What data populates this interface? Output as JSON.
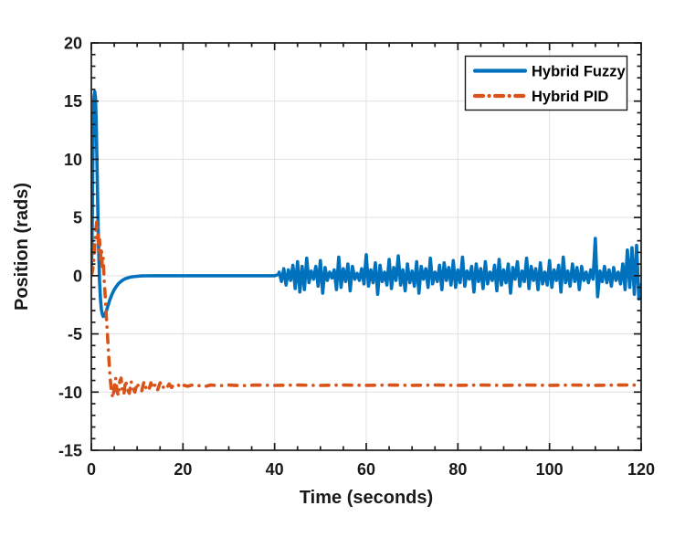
{
  "chart_data": {
    "type": "line",
    "title": "",
    "xlabel": "Time (seconds)",
    "ylabel": "Position (rads)",
    "xlim": [
      0,
      120
    ],
    "ylim": [
      -15,
      20
    ],
    "x_major_ticks": [
      0,
      20,
      40,
      60,
      80,
      100,
      120
    ],
    "x_minor_step": 5,
    "y_major_ticks": [
      -15,
      -10,
      -5,
      0,
      5,
      10,
      15,
      20
    ],
    "y_minor_step": 1,
    "grid": true,
    "legend_position": "top-right",
    "colors": {
      "axis": "#1a1a1a",
      "grid": "#e0e0e0",
      "background": "#ffffff",
      "series_blue": "#0072BD",
      "series_orange": "#D95319"
    },
    "series": [
      {
        "name": "Hybrid Fuzzy",
        "color": "#0072BD",
        "style": "solid",
        "points": [
          [
            0,
            0.3
          ],
          [
            0.15,
            3
          ],
          [
            0.3,
            9
          ],
          [
            0.45,
            13.5
          ],
          [
            0.6,
            15.4
          ],
          [
            0.75,
            15.8
          ],
          [
            0.9,
            15.3
          ],
          [
            1.05,
            13.5
          ],
          [
            1.2,
            10.5
          ],
          [
            1.35,
            7
          ],
          [
            1.5,
            4
          ],
          [
            1.65,
            1.5
          ],
          [
            1.8,
            -0.5
          ],
          [
            2,
            -2
          ],
          [
            2.2,
            -2.9
          ],
          [
            2.4,
            -3.3
          ],
          [
            2.6,
            -3.5
          ],
          [
            2.8,
            -3.45
          ],
          [
            3,
            -3.3
          ],
          [
            3.3,
            -3
          ],
          [
            3.6,
            -2.6
          ],
          [
            4,
            -2.1
          ],
          [
            4.5,
            -1.6
          ],
          [
            5,
            -1.2
          ],
          [
            5.5,
            -0.9
          ],
          [
            6,
            -0.65
          ],
          [
            6.5,
            -0.48
          ],
          [
            7,
            -0.35
          ],
          [
            7.5,
            -0.25
          ],
          [
            8,
            -0.18
          ],
          [
            8.5,
            -0.13
          ],
          [
            9,
            -0.09
          ],
          [
            10,
            -0.05
          ],
          [
            11,
            -0.02
          ],
          [
            12,
            -0.01
          ],
          [
            14,
            0
          ],
          [
            16,
            0
          ],
          [
            18,
            0
          ],
          [
            20,
            0
          ],
          [
            24,
            0
          ],
          [
            28,
            0
          ],
          [
            32,
            0
          ],
          [
            36,
            0
          ],
          [
            40,
            0
          ],
          [
            40.8,
            0.1
          ],
          [
            41,
            0.3
          ],
          [
            41.5,
            -0.5
          ],
          [
            42,
            0.6
          ],
          [
            42.5,
            -0.8
          ],
          [
            43,
            0.5
          ],
          [
            43.5,
            -0.4
          ],
          [
            44,
            0.9
          ],
          [
            44.5,
            -1.1
          ],
          [
            45,
            1.2
          ],
          [
            45.5,
            -1.4
          ],
          [
            46,
            0.8
          ],
          [
            46.5,
            -1.2
          ],
          [
            47,
            1.5
          ],
          [
            47.5,
            -0.6
          ],
          [
            48,
            0.4
          ],
          [
            48.5,
            -0.3
          ],
          [
            49,
            0.8
          ],
          [
            49.5,
            -0.9
          ],
          [
            50,
            1.3
          ],
          [
            50.5,
            -1.5
          ],
          [
            51,
            0.7
          ],
          [
            51.5,
            -0.4
          ],
          [
            52,
            0.3
          ],
          [
            52.5,
            -0.2
          ],
          [
            53,
            0.5
          ],
          [
            53.5,
            -1.2
          ],
          [
            54,
            1.6
          ],
          [
            54.5,
            -1
          ],
          [
            55,
            0.6
          ],
          [
            55.5,
            -0.5
          ],
          [
            56,
            1
          ],
          [
            56.5,
            -1.3
          ],
          [
            57,
            0.8
          ],
          [
            57.5,
            -0.3
          ],
          [
            58,
            0.2
          ],
          [
            58.5,
            -0.4
          ],
          [
            59,
            0.6
          ],
          [
            59.5,
            -0.7
          ],
          [
            60,
            1.8
          ],
          [
            60.5,
            -0.9
          ],
          [
            61,
            0.5
          ],
          [
            61.5,
            -0.6
          ],
          [
            62,
            1.1
          ],
          [
            62.5,
            -1.6
          ],
          [
            63,
            0.9
          ],
          [
            63.5,
            -0.5
          ],
          [
            64,
            0.3
          ],
          [
            64.5,
            -0.8
          ],
          [
            65,
            1.4
          ],
          [
            65.5,
            -1.1
          ],
          [
            66,
            0.7
          ],
          [
            66.5,
            -0.4
          ],
          [
            67,
            1.7
          ],
          [
            67.5,
            -0.8
          ],
          [
            68,
            0.5
          ],
          [
            68.5,
            -1.3
          ],
          [
            69,
            1
          ],
          [
            69.5,
            -0.6
          ],
          [
            70,
            0.4
          ],
          [
            70.5,
            -0.9
          ],
          [
            71,
            1.2
          ],
          [
            71.5,
            -1.5
          ],
          [
            72,
            0.8
          ],
          [
            72.5,
            -0.3
          ],
          [
            73,
            0.6
          ],
          [
            73.5,
            -1
          ],
          [
            74,
            1.5
          ],
          [
            74.5,
            -0.7
          ],
          [
            75,
            0.3
          ],
          [
            75.5,
            -0.5
          ],
          [
            76,
            0.9
          ],
          [
            76.5,
            -1.2
          ],
          [
            77,
            1.1
          ],
          [
            77.5,
            -0.4
          ],
          [
            78,
            0.7
          ],
          [
            78.5,
            -0.8
          ],
          [
            79,
            1.3
          ],
          [
            79.5,
            -1
          ],
          [
            80,
            0.5
          ],
          [
            80.5,
            -0.6
          ],
          [
            81,
            1.6
          ],
          [
            81.5,
            -0.9
          ],
          [
            82,
            0.4
          ],
          [
            82.5,
            -0.3
          ],
          [
            83,
            0.8
          ],
          [
            83.5,
            -1.4
          ],
          [
            84,
            1
          ],
          [
            84.5,
            -0.5
          ],
          [
            85,
            0.6
          ],
          [
            85.5,
            -1.1
          ],
          [
            86,
            1.2
          ],
          [
            86.5,
            -0.7
          ],
          [
            87,
            0.3
          ],
          [
            87.5,
            -0.4
          ],
          [
            88,
            0.9
          ],
          [
            88.5,
            -1.3
          ],
          [
            89,
            1.4
          ],
          [
            89.5,
            -0.8
          ],
          [
            90,
            0.5
          ],
          [
            90.5,
            -0.6
          ],
          [
            91,
            1
          ],
          [
            91.5,
            -1.5
          ],
          [
            92,
            0.7
          ],
          [
            92.5,
            -0.3
          ],
          [
            93,
            1.2
          ],
          [
            93.5,
            -0.9
          ],
          [
            94,
            0.4
          ],
          [
            94.5,
            -0.5
          ],
          [
            95,
            1.5
          ],
          [
            95.5,
            -1.1
          ],
          [
            96,
            0.8
          ],
          [
            96.5,
            -0.4
          ],
          [
            97,
            0.6
          ],
          [
            97.5,
            -1.2
          ],
          [
            98,
            1.1
          ],
          [
            98.5,
            -0.7
          ],
          [
            99,
            0.3
          ],
          [
            99.5,
            -0.8
          ],
          [
            100,
            1.3
          ],
          [
            100.5,
            -1
          ],
          [
            101,
            0.5
          ],
          [
            101.5,
            -0.4
          ],
          [
            102,
            0.9
          ],
          [
            102.5,
            -1.4
          ],
          [
            103,
            1.6
          ],
          [
            103.5,
            -0.6
          ],
          [
            104,
            0.4
          ],
          [
            104.5,
            -0.9
          ],
          [
            105,
            1
          ],
          [
            105.5,
            -0.5
          ],
          [
            106,
            0.7
          ],
          [
            106.5,
            -1.2
          ],
          [
            107,
            0.8
          ],
          [
            107.5,
            -0.4
          ],
          [
            108,
            0.3
          ],
          [
            108.5,
            -0.6
          ],
          [
            109,
            0.5
          ],
          [
            109.5,
            -0.3
          ],
          [
            110,
            3.2
          ],
          [
            110.5,
            -1.8
          ],
          [
            111,
            0.4
          ],
          [
            111.5,
            -0.5
          ],
          [
            112,
            0.8
          ],
          [
            112.5,
            -0.6
          ],
          [
            113,
            0.5
          ],
          [
            113.5,
            -0.9
          ],
          [
            114,
            0.7
          ],
          [
            114.5,
            -0.4
          ],
          [
            115,
            0.3
          ],
          [
            115.5,
            -0.7
          ],
          [
            116,
            1
          ],
          [
            116.5,
            -1.2
          ],
          [
            117,
            2.2
          ],
          [
            117.5,
            -1
          ],
          [
            118,
            2.4
          ],
          [
            118.5,
            -1.6
          ],
          [
            119,
            2.6
          ],
          [
            119.5,
            -2
          ],
          [
            120,
            -0.8
          ]
        ]
      },
      {
        "name": "Hybrid PID",
        "color": "#D95319",
        "style": "dash-dot",
        "points": [
          [
            0,
            0
          ],
          [
            0.2,
            0.3
          ],
          [
            0.4,
            0.8
          ],
          [
            0.6,
            1.6
          ],
          [
            0.8,
            2.8
          ],
          [
            1,
            4
          ],
          [
            1.2,
            4.7
          ],
          [
            1.4,
            3.8
          ],
          [
            1.6,
            2.2
          ],
          [
            1.8,
            3.1
          ],
          [
            2,
            1.4
          ],
          [
            2.2,
            2.4
          ],
          [
            2.4,
            0.8
          ],
          [
            2.6,
            1.5
          ],
          [
            2.8,
            -0.3
          ],
          [
            3,
            -1.5
          ],
          [
            3.2,
            -3
          ],
          [
            3.5,
            -5
          ],
          [
            3.8,
            -7
          ],
          [
            4.1,
            -8.8
          ],
          [
            4.4,
            -10
          ],
          [
            4.7,
            -10.5
          ],
          [
            5,
            -9.6
          ],
          [
            5.3,
            -8.8
          ],
          [
            5.6,
            -9.9
          ],
          [
            5.9,
            -10.3
          ],
          [
            6.2,
            -9.1
          ],
          [
            6.5,
            -8.8
          ],
          [
            6.8,
            -10
          ],
          [
            7.1,
            -10.2
          ],
          [
            7.5,
            -9
          ],
          [
            7.9,
            -9.8
          ],
          [
            8.3,
            -10.1
          ],
          [
            8.7,
            -9.1
          ],
          [
            9.1,
            -9.7
          ],
          [
            9.5,
            -10
          ],
          [
            10,
            -9.2
          ],
          [
            10.5,
            -9.8
          ],
          [
            11,
            -9.9
          ],
          [
            11.5,
            -9.1
          ],
          [
            12,
            -9.7
          ],
          [
            12.5,
            -9.9
          ],
          [
            13,
            -9.2
          ],
          [
            13.5,
            -9.7
          ],
          [
            14,
            -9.3
          ],
          [
            14.5,
            -9.8
          ],
          [
            15,
            -9.2
          ],
          [
            15.5,
            -9.7
          ],
          [
            16,
            -9.4
          ],
          [
            16.5,
            -9.6
          ],
          [
            17,
            -9.3
          ],
          [
            17.5,
            -9.6
          ],
          [
            18,
            -9.4
          ],
          [
            18.5,
            -9.5
          ],
          [
            19,
            -9.4
          ],
          [
            19.5,
            -9.6
          ],
          [
            20,
            -9.4
          ],
          [
            21,
            -9.5
          ],
          [
            22,
            -9.4
          ],
          [
            23,
            -9.5
          ],
          [
            24,
            -9.4
          ],
          [
            25,
            -9.5
          ],
          [
            26,
            -9.4
          ],
          [
            28,
            -9.45
          ],
          [
            30,
            -9.4
          ],
          [
            33,
            -9.45
          ],
          [
            36,
            -9.4
          ],
          [
            40,
            -9.43
          ],
          [
            45,
            -9.4
          ],
          [
            50,
            -9.43
          ],
          [
            55,
            -9.4
          ],
          [
            60,
            -9.42
          ],
          [
            65,
            -9.4
          ],
          [
            70,
            -9.42
          ],
          [
            75,
            -9.4
          ],
          [
            80,
            -9.42
          ],
          [
            85,
            -9.4
          ],
          [
            90,
            -9.42
          ],
          [
            95,
            -9.4
          ],
          [
            100,
            -9.42
          ],
          [
            105,
            -9.4
          ],
          [
            110,
            -9.42
          ],
          [
            115,
            -9.4
          ],
          [
            120,
            -9.4
          ]
        ]
      }
    ]
  }
}
